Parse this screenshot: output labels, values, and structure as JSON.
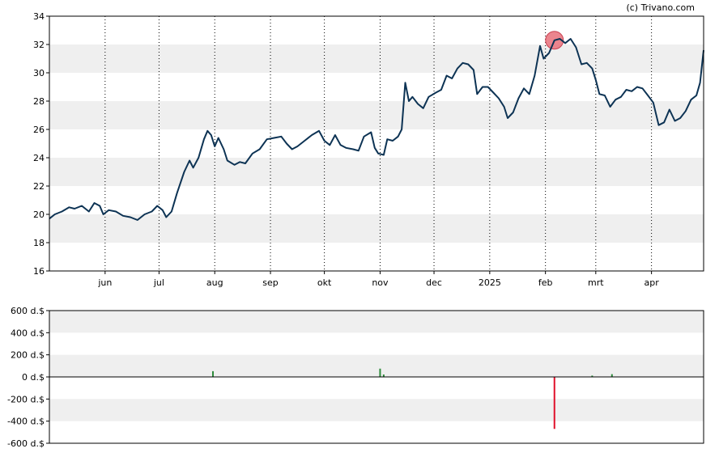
{
  "credit": "(c) Trivano.com",
  "chart_data": [
    {
      "type": "line",
      "name": "price-chart",
      "ylim": [
        16,
        34
      ],
      "y_ticks": [
        "16",
        "18",
        "20",
        "22",
        "24",
        "26",
        "28",
        "30",
        "32",
        "34"
      ],
      "x_range": [
        "2024-05-01",
        "2025-04-30"
      ],
      "x_ticks": [
        {
          "label": "jun",
          "date": "2024-06-01"
        },
        {
          "label": "jul",
          "date": "2024-07-01"
        },
        {
          "label": "aug",
          "date": "2024-08-01"
        },
        {
          "label": "sep",
          "date": "2024-09-01"
        },
        {
          "label": "okt",
          "date": "2024-10-01"
        },
        {
          "label": "nov",
          "date": "2024-11-01"
        },
        {
          "label": "dec",
          "date": "2024-12-01"
        },
        {
          "label": "2025",
          "date": "2025-01-01"
        },
        {
          "label": "feb",
          "date": "2025-02-01"
        },
        {
          "label": "mrt",
          "date": "2025-03-01"
        },
        {
          "label": "apr",
          "date": "2025-04-01"
        }
      ],
      "grid": "horizontal bands + dotted vertical month lines",
      "line_color": "#0d3354",
      "highlight_color": "#e8707a",
      "highlight": {
        "date": "2025-02-06",
        "value": 32.3
      },
      "series": [
        {
          "points": [
            [
              "2024-05-01",
              19.7
            ],
            [
              "2024-05-04",
              20.0
            ],
            [
              "2024-05-08",
              20.2
            ],
            [
              "2024-05-12",
              20.5
            ],
            [
              "2024-05-15",
              20.4
            ],
            [
              "2024-05-19",
              20.6
            ],
            [
              "2024-05-23",
              20.2
            ],
            [
              "2024-05-26",
              20.8
            ],
            [
              "2024-05-29",
              20.6
            ],
            [
              "2024-05-31",
              20.0
            ],
            [
              "2024-06-03",
              20.3
            ],
            [
              "2024-06-07",
              20.2
            ],
            [
              "2024-06-11",
              19.9
            ],
            [
              "2024-06-15",
              19.8
            ],
            [
              "2024-06-19",
              19.6
            ],
            [
              "2024-06-23",
              20.0
            ],
            [
              "2024-06-27",
              20.2
            ],
            [
              "2024-06-30",
              20.6
            ],
            [
              "2024-07-03",
              20.3
            ],
            [
              "2024-07-05",
              19.8
            ],
            [
              "2024-07-08",
              20.2
            ],
            [
              "2024-07-11",
              21.5
            ],
            [
              "2024-07-15",
              23.0
            ],
            [
              "2024-07-18",
              23.8
            ],
            [
              "2024-07-20",
              23.3
            ],
            [
              "2024-07-23",
              24.0
            ],
            [
              "2024-07-26",
              25.3
            ],
            [
              "2024-07-28",
              25.9
            ],
            [
              "2024-07-30",
              25.6
            ],
            [
              "2024-08-01",
              24.8
            ],
            [
              "2024-08-03",
              25.4
            ],
            [
              "2024-08-06",
              24.6
            ],
            [
              "2024-08-08",
              23.8
            ],
            [
              "2024-08-12",
              23.5
            ],
            [
              "2024-08-15",
              23.7
            ],
            [
              "2024-08-18",
              23.6
            ],
            [
              "2024-08-22",
              24.3
            ],
            [
              "2024-08-26",
              24.6
            ],
            [
              "2024-08-30",
              25.3
            ],
            [
              "2024-09-03",
              25.4
            ],
            [
              "2024-09-07",
              25.5
            ],
            [
              "2024-09-10",
              25.0
            ],
            [
              "2024-09-13",
              24.6
            ],
            [
              "2024-09-16",
              24.8
            ],
            [
              "2024-09-20",
              25.2
            ],
            [
              "2024-09-24",
              25.6
            ],
            [
              "2024-09-28",
              25.9
            ],
            [
              "2024-10-01",
              25.2
            ],
            [
              "2024-10-04",
              24.9
            ],
            [
              "2024-10-07",
              25.6
            ],
            [
              "2024-10-10",
              24.9
            ],
            [
              "2024-10-13",
              24.7
            ],
            [
              "2024-10-17",
              24.6
            ],
            [
              "2024-10-20",
              24.5
            ],
            [
              "2024-10-23",
              25.5
            ],
            [
              "2024-10-27",
              25.8
            ],
            [
              "2024-10-29",
              24.7
            ],
            [
              "2024-10-31",
              24.3
            ],
            [
              "2024-11-03",
              24.2
            ],
            [
              "2024-11-05",
              25.3
            ],
            [
              "2024-11-08",
              25.2
            ],
            [
              "2024-11-11",
              25.5
            ],
            [
              "2024-11-13",
              26.0
            ],
            [
              "2024-11-15",
              29.3
            ],
            [
              "2024-11-17",
              28.0
            ],
            [
              "2024-11-19",
              28.3
            ],
            [
              "2024-11-22",
              27.8
            ],
            [
              "2024-11-25",
              27.5
            ],
            [
              "2024-11-28",
              28.3
            ],
            [
              "2024-12-02",
              28.6
            ],
            [
              "2024-12-05",
              28.8
            ],
            [
              "2024-12-08",
              29.8
            ],
            [
              "2024-12-11",
              29.6
            ],
            [
              "2024-12-14",
              30.3
            ],
            [
              "2024-12-17",
              30.7
            ],
            [
              "2024-12-20",
              30.6
            ],
            [
              "2024-12-23",
              30.2
            ],
            [
              "2024-12-25",
              28.5
            ],
            [
              "2024-12-28",
              29.0
            ],
            [
              "2024-12-31",
              29.0
            ],
            [
              "2025-01-03",
              28.6
            ],
            [
              "2025-01-06",
              28.2
            ],
            [
              "2025-01-09",
              27.6
            ],
            [
              "2025-01-11",
              26.8
            ],
            [
              "2025-01-14",
              27.2
            ],
            [
              "2025-01-17",
              28.2
            ],
            [
              "2025-01-20",
              28.9
            ],
            [
              "2025-01-23",
              28.5
            ],
            [
              "2025-01-26",
              29.8
            ],
            [
              "2025-01-29",
              31.9
            ],
            [
              "2025-01-31",
              31.0
            ],
            [
              "2025-02-03",
              31.4
            ],
            [
              "2025-02-06",
              32.3
            ],
            [
              "2025-02-09",
              32.4
            ],
            [
              "2025-02-12",
              32.1
            ],
            [
              "2025-02-15",
              32.4
            ],
            [
              "2025-02-18",
              31.8
            ],
            [
              "2025-02-21",
              30.6
            ],
            [
              "2025-02-24",
              30.7
            ],
            [
              "2025-02-27",
              30.3
            ],
            [
              "2025-03-01",
              29.5
            ],
            [
              "2025-03-03",
              28.5
            ],
            [
              "2025-03-06",
              28.4
            ],
            [
              "2025-03-09",
              27.6
            ],
            [
              "2025-03-12",
              28.1
            ],
            [
              "2025-03-15",
              28.3
            ],
            [
              "2025-03-18",
              28.8
            ],
            [
              "2025-03-21",
              28.7
            ],
            [
              "2025-03-24",
              29.0
            ],
            [
              "2025-03-27",
              28.9
            ],
            [
              "2025-03-30",
              28.4
            ],
            [
              "2025-04-02",
              27.9
            ],
            [
              "2025-04-05",
              26.3
            ],
            [
              "2025-04-08",
              26.5
            ],
            [
              "2025-04-11",
              27.4
            ],
            [
              "2025-04-14",
              26.6
            ],
            [
              "2025-04-17",
              26.8
            ],
            [
              "2025-04-20",
              27.3
            ],
            [
              "2025-04-23",
              28.1
            ],
            [
              "2025-04-26",
              28.4
            ],
            [
              "2025-04-28",
              29.3
            ],
            [
              "2025-04-30",
              31.6
            ]
          ]
        }
      ]
    },
    {
      "type": "bar",
      "name": "volume-chart",
      "ylim": [
        -600,
        600
      ],
      "y_ticks": [
        "600 d.$",
        "400 d.$",
        "200 d.$",
        "0 d.$",
        "-200 d.$",
        "-400 d.$",
        "-600 d.$"
      ],
      "x_range": [
        "2024-05-01",
        "2025-04-30"
      ],
      "grid": "horizontal bands",
      "positive_color": "#2e8b3c",
      "negative_color": "#e0102a",
      "bars": [
        {
          "date": "2024-07-31",
          "value": 52
        },
        {
          "date": "2024-11-01",
          "value": 75
        },
        {
          "date": "2024-11-03",
          "value": 22
        },
        {
          "date": "2025-02-06",
          "value": -470
        },
        {
          "date": "2025-02-27",
          "value": 12
        },
        {
          "date": "2025-03-10",
          "value": 25
        }
      ]
    }
  ]
}
